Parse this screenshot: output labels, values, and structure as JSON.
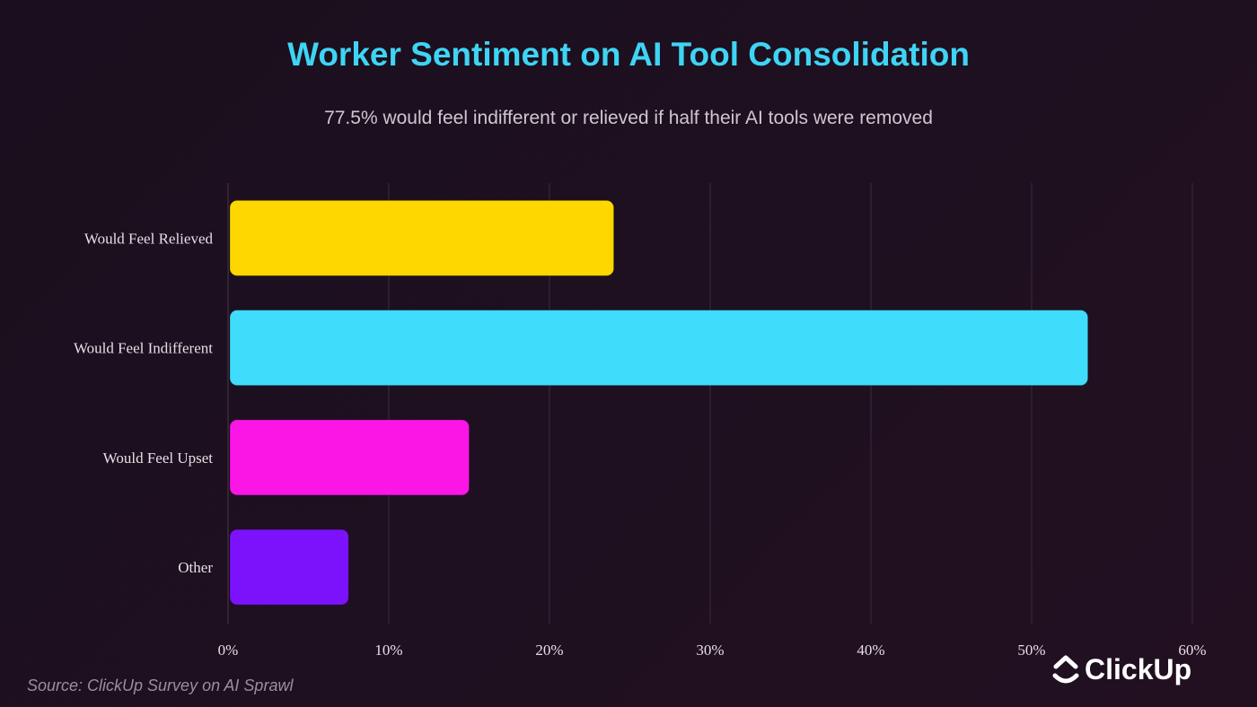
{
  "chart_data": {
    "type": "bar",
    "orientation": "horizontal",
    "title": "Worker Sentiment on AI Tool Consolidation",
    "subtitle": "77.5% would feel indifferent or relieved if half their AI tools were removed",
    "categories": [
      "Would Feel Relieved",
      "Would Feel Indifferent",
      "Would Feel Upset",
      "Other"
    ],
    "values": [
      24,
      53.5,
      15,
      7.5
    ],
    "colors": [
      "#ffd700",
      "#40dcfb",
      "#fb16e6",
      "#7c12fb"
    ],
    "xlim": [
      0,
      60
    ],
    "xticks": [
      "0%",
      "10%",
      "20%",
      "30%",
      "40%",
      "50%",
      "60%"
    ],
    "grid": true,
    "source": "Source: ClickUp Survey on AI Sprawl"
  },
  "logo": {
    "text": "ClickUp"
  }
}
